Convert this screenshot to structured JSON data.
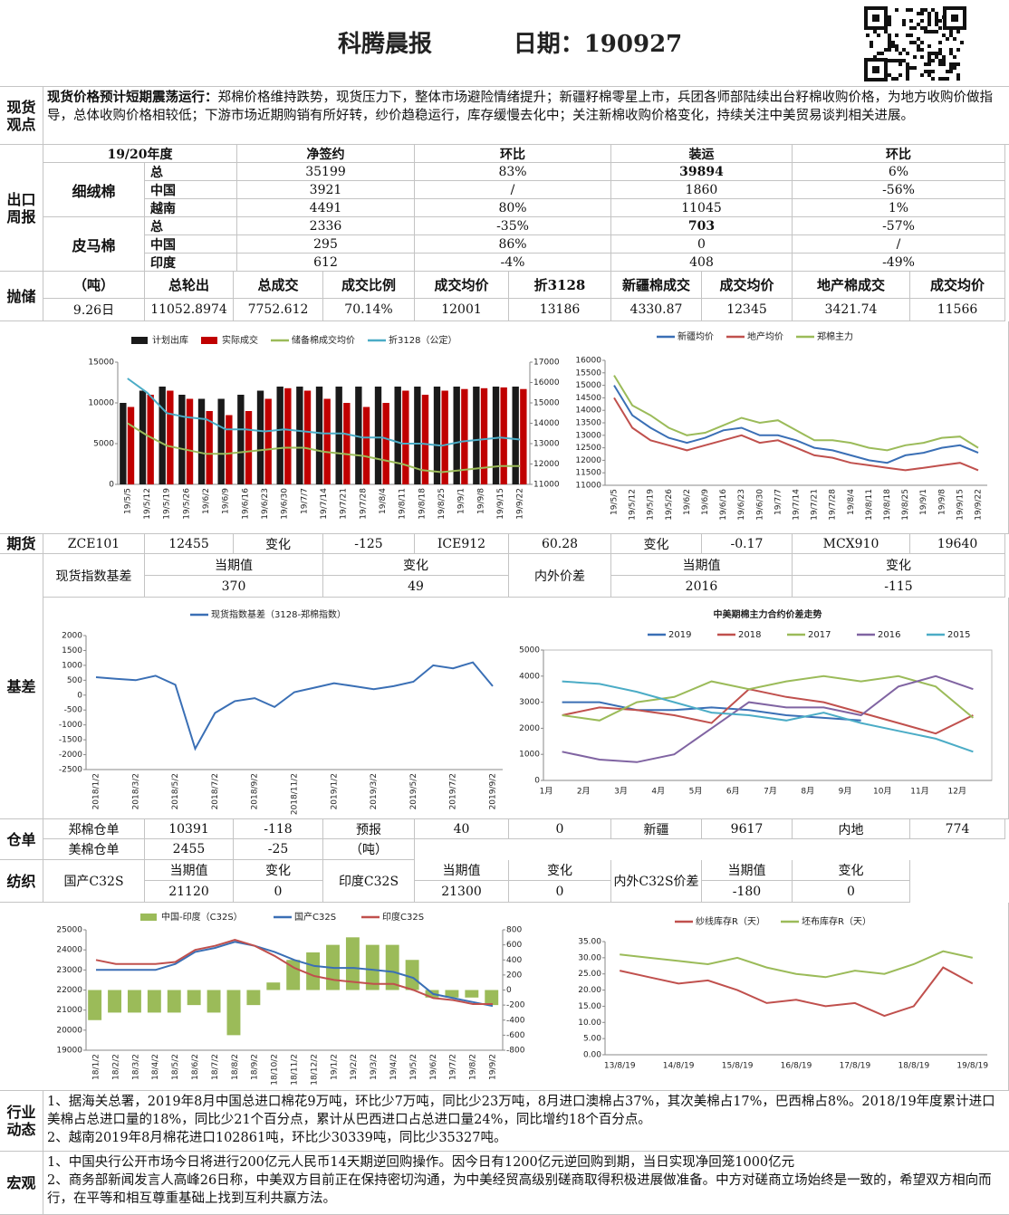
{
  "header": {
    "title": "科腾晨报",
    "date": "日期：190927"
  },
  "spot": {
    "label": "现货观点",
    "bold": "现货价格预计短期震荡运行：",
    "text": "郑棉价格维持跌势，现货压力下，整体市场避险情绪提升；新疆籽棉零星上市，兵团各师部陆续出台籽棉收购价格，为地方收购价做指导，总体收购价格相较低；下游市场近期购销有所好转，纱价趋稳运行，库存缓慢去化中；关注新棉收购价格变化，持续关注中美贸易谈判相关进展。"
  },
  "export": {
    "label": "出口周报",
    "head": [
      "19/20年度",
      "净签约",
      "环比",
      "装运",
      "环比"
    ],
    "groups": [
      {
        "name": "细绒棉",
        "rows": [
          [
            "总",
            "35199",
            "83%",
            "39894",
            "6%"
          ],
          [
            "中国",
            "3921",
            "/",
            "1860",
            "-56%"
          ],
          [
            "越南",
            "4491",
            "80%",
            "11045",
            "1%"
          ]
        ]
      },
      {
        "name": "皮马棉",
        "rows": [
          [
            "总",
            "2336",
            "-35%",
            "703",
            "-57%"
          ],
          [
            "中国",
            "295",
            "86%",
            "0",
            "/"
          ],
          [
            "印度",
            "612",
            "-4%",
            "408",
            "-49%"
          ]
        ]
      }
    ]
  },
  "reserve": {
    "label": "抛储",
    "head": [
      "（吨）",
      "总轮出",
      "总成交",
      "成交比例",
      "成交均价",
      "折3128",
      "新疆棉成交",
      "成交均价",
      "地产棉成交",
      "成交均价"
    ],
    "row": [
      "9.26日",
      "11052.8974",
      "7752.612",
      "70.14%",
      "12001",
      "13186",
      "4330.87",
      "12345",
      "3421.74",
      "11566"
    ]
  },
  "futures": {
    "label": "期货",
    "row": [
      "ZCE101",
      "12455",
      "变化",
      "-125",
      "ICE912",
      "60.28",
      "变化",
      "-0.17",
      "MCX910",
      "19640"
    ]
  },
  "basis": {
    "label": "基差",
    "name": "现货指数基差",
    "head": [
      "当期值",
      "变化"
    ],
    "vals": [
      "370",
      "49"
    ],
    "name2": "内外价差",
    "head2": [
      "当期值",
      "变化"
    ],
    "vals2": [
      "2016",
      "-115"
    ]
  },
  "warehouse": {
    "label": "仓单",
    "rows": [
      [
        "郑棉仓单",
        "10391",
        "-118",
        "预报",
        "40",
        "0",
        "新疆",
        "9617",
        "内地",
        "774"
      ],
      [
        "美棉仓单",
        "2455",
        "-25",
        "（吨）"
      ]
    ]
  },
  "textile": {
    "label": "纺织",
    "items": [
      {
        "name": "国产C32S",
        "head": [
          "当期值",
          "变化"
        ],
        "vals": [
          "21120",
          "0"
        ]
      },
      {
        "name": "印度C32S",
        "head": [
          "当期值",
          "变化"
        ],
        "vals": [
          "21300",
          "0"
        ]
      },
      {
        "name": "内外C32S价差",
        "head": [
          "当期值",
          "变化"
        ],
        "vals": [
          "-180",
          "0"
        ]
      }
    ]
  },
  "industry": {
    "label": "行业动态",
    "paras": [
      "1、据海关总署，2019年8月中国总进口棉花9万吨，环比少7万吨，同比少23万吨，8月进口澳棉占37%，其次美棉占17%，巴西棉占8%。2018/19年度累计进口美棉占总进口量的18%，同比少21个百分点，累计从巴西进口占总进口量24%，同比增约18个百分点。",
      "2、越南2019年8月棉花进口102861吨，环比少30339吨，同比少35327吨。"
    ]
  },
  "macro": {
    "label": "宏观",
    "paras": [
      "1、中国央行公开市场今日将进行200亿元人民币14天期逆回购操作。因今日有1200亿元逆回购到期，当日实现净回笼1000亿元",
      "2、商务部新闻发言人高峰26日称，中美双方目前正在保持密切沟通，为中美经贸高级别磋商取得积极进展做准备。中方对磋商立场始终是一致的，希望双方相向而行，在平等和相互尊重基础上找到互利共赢方法。"
    ]
  },
  "chart_data": [
    {
      "type": "combo",
      "categories": [
        "19/5/5",
        "19/5/12",
        "19/5/19",
        "19/5/26",
        "19/6/2",
        "19/6/9",
        "19/6/16",
        "19/6/23",
        "19/6/30",
        "19/7/7",
        "19/7/14",
        "19/7/21",
        "19/7/28",
        "19/8/4",
        "19/8/11",
        "19/8/18",
        "19/8/25",
        "19/9/1",
        "19/9/8",
        "19/9/15",
        "19/9/22"
      ],
      "ylim": [
        0,
        15000
      ],
      "yticks": [
        0,
        5000,
        10000,
        15000
      ],
      "y2lim": [
        11000,
        17000
      ],
      "y2ticks": [
        11000,
        12000,
        13000,
        14000,
        15000,
        16000,
        17000
      ],
      "series": [
        {
          "name": "计划出库",
          "type": "bar",
          "color": "#1a1a1a",
          "values": [
            10000,
            11500,
            12000,
            11000,
            10500,
            10500,
            11000,
            11500,
            12000,
            12000,
            12000,
            12000,
            12000,
            12000,
            12000,
            12000,
            12000,
            12000,
            12000,
            12000,
            12000
          ]
        },
        {
          "name": "实际成交",
          "type": "bar",
          "color": "#c00000",
          "values": [
            9500,
            11000,
            11500,
            10500,
            9000,
            8500,
            9000,
            10500,
            11800,
            11500,
            10500,
            10000,
            9500,
            10000,
            11500,
            11000,
            11500,
            11700,
            11800,
            11900,
            11700
          ]
        },
        {
          "name": "储备棉成交均价",
          "type": "line",
          "axis": "y2",
          "color": "#9bbb59",
          "values": [
            14000,
            13400,
            12900,
            12700,
            12500,
            12500,
            12600,
            12700,
            12800,
            12800,
            12600,
            12500,
            12400,
            12200,
            12000,
            11700,
            11600,
            11700,
            11800,
            11900,
            11900
          ]
        },
        {
          "name": "折3128（公定）",
          "type": "line",
          "axis": "y2",
          "color": "#4bacc6",
          "values": [
            16200,
            15500,
            14500,
            14300,
            14200,
            13700,
            13700,
            13600,
            13700,
            13600,
            13500,
            13500,
            13300,
            13300,
            13000,
            13000,
            12900,
            13100,
            13200,
            13300,
            13200
          ]
        }
      ]
    },
    {
      "type": "line",
      "categories": [
        "19/5/5",
        "19/5/12",
        "19/5/19",
        "19/5/26",
        "19/6/2",
        "19/6/9",
        "19/6/16",
        "19/6/23",
        "19/6/30",
        "19/7/7",
        "19/7/14",
        "19/7/21",
        "19/7/28",
        "19/8/4",
        "19/8/11",
        "19/8/18",
        "19/8/25",
        "19/9/1",
        "19/9/8",
        "19/9/15",
        "19/9/22"
      ],
      "ylim": [
        11000,
        16000
      ],
      "yticks": [
        11000,
        11500,
        12000,
        12500,
        13000,
        13500,
        14000,
        14500,
        15000,
        15500,
        16000
      ],
      "series": [
        {
          "name": "新疆均价",
          "color": "#3a6fb5",
          "values": [
            15000,
            13800,
            13300,
            12900,
            12700,
            12900,
            13200,
            13300,
            13000,
            13000,
            12800,
            12500,
            12400,
            12200,
            12000,
            11900,
            12200,
            12300,
            12500,
            12600,
            12300
          ]
        },
        {
          "name": "地产均价",
          "color": "#c0504d",
          "values": [
            14500,
            13300,
            12800,
            12600,
            12400,
            12600,
            12800,
            13000,
            12700,
            12800,
            12500,
            12200,
            12100,
            11900,
            11800,
            11700,
            11600,
            11700,
            11800,
            11900,
            11600
          ]
        },
        {
          "name": "郑棉主力",
          "color": "#9bbb59",
          "values": [
            15400,
            14200,
            13800,
            13300,
            13000,
            13100,
            13400,
            13700,
            13500,
            13600,
            13200,
            12800,
            12800,
            12700,
            12500,
            12400,
            12600,
            12700,
            12900,
            12950,
            12500
          ]
        }
      ]
    },
    {
      "type": "line",
      "categories": [
        "2018/1/2",
        null,
        "2018/3/2",
        null,
        "2018/5/2",
        null,
        "2018/7/2",
        null,
        "2018/9/2",
        null,
        "2018/11/2",
        null,
        "2019/1/2",
        null,
        "2019/3/2",
        null,
        "2019/5/2",
        null,
        "2019/7/2",
        null,
        "2019/9/2"
      ],
      "ylim": [
        -2500,
        2000
      ],
      "yticks": [
        -2500,
        -2000,
        -1500,
        -1000,
        -500,
        0,
        500,
        1000,
        1500,
        2000
      ],
      "series": [
        {
          "name": "现货指数基差（3128-郑棉指数）",
          "color": "#3a6fb5",
          "values": [
            600,
            550,
            500,
            650,
            350,
            -1800,
            -600,
            -200,
            -100,
            -400,
            100,
            250,
            400,
            300,
            200,
            300,
            450,
            1000,
            900,
            1100,
            300
          ]
        }
      ]
    },
    {
      "type": "line",
      "title": "中美期棉主力合约价差走势",
      "categories": [
        "1月",
        "2月",
        "3月",
        "4月",
        "5月",
        "6月",
        "7月",
        "8月",
        "9月",
        "10月",
        "11月",
        "12月"
      ],
      "ylim": [
        0,
        5000
      ],
      "yticks": [
        0,
        1000,
        2000,
        3000,
        4000,
        5000
      ],
      "series": [
        {
          "name": "2019",
          "color": "#3a6fb5",
          "values": [
            3000,
            3000,
            2700,
            2700,
            2800,
            2700,
            2500,
            2400,
            2300,
            null,
            null,
            null
          ]
        },
        {
          "name": "2018",
          "color": "#c0504d",
          "values": [
            2500,
            2800,
            2700,
            2500,
            2200,
            3500,
            3200,
            3000,
            2600,
            2200,
            1800,
            2500
          ]
        },
        {
          "name": "2017",
          "color": "#9bbb59",
          "values": [
            2500,
            2300,
            3000,
            3200,
            3800,
            3500,
            3800,
            4000,
            3800,
            4000,
            3600,
            2400
          ]
        },
        {
          "name": "2016",
          "color": "#8064a2",
          "values": [
            1100,
            800,
            700,
            1000,
            2000,
            3000,
            2800,
            2800,
            2500,
            3600,
            4000,
            3500
          ]
        },
        {
          "name": "2015",
          "color": "#4bacc6",
          "values": [
            3800,
            3700,
            3400,
            3000,
            2600,
            2500,
            2300,
            2600,
            2200,
            1900,
            1600,
            1100
          ]
        }
      ]
    },
    {
      "type": "combo",
      "categories": [
        "18/1/2",
        "18/2/2",
        "18/3/2",
        "18/4/2",
        "18/5/2",
        "18/6/2",
        "18/7/2",
        "18/8/2",
        "18/9/2",
        "18/10/2",
        "18/11/2",
        "18/12/2",
        "19/1/2",
        "19/2/2",
        "19/3/2",
        "19/4/2",
        "19/5/2",
        "19/6/2",
        "19/7/2",
        "19/8/2",
        "19/9/2"
      ],
      "ylim": [
        19000,
        25000
      ],
      "yticks": [
        19000,
        20000,
        21000,
        22000,
        23000,
        24000,
        25000
      ],
      "y2lim": [
        -800,
        800
      ],
      "y2ticks": [
        -800,
        -600,
        -400,
        -200,
        0,
        200,
        400,
        600,
        800
      ],
      "series": [
        {
          "name": "中国-印度（C32S）",
          "type": "bar",
          "axis": "y2",
          "color": "#9bbb59",
          "values": [
            -400,
            -300,
            -300,
            -300,
            -300,
            -200,
            -300,
            -600,
            -200,
            100,
            400,
            500,
            600,
            700,
            600,
            600,
            400,
            -100,
            -100,
            -100,
            -200
          ]
        },
        {
          "name": "国产C32S",
          "type": "line",
          "color": "#3a6fb5",
          "values": [
            23000,
            23000,
            23000,
            23000,
            23300,
            23900,
            24100,
            24400,
            24200,
            23900,
            23500,
            23200,
            23100,
            23100,
            23000,
            22900,
            22600,
            21800,
            21600,
            21400,
            21200
          ]
        },
        {
          "name": "印度C32S",
          "type": "line",
          "color": "#c0504d",
          "values": [
            23500,
            23300,
            23300,
            23300,
            23400,
            24000,
            24200,
            24500,
            24200,
            23700,
            23100,
            22700,
            22500,
            22400,
            22300,
            22300,
            22000,
            21600,
            21500,
            21300,
            21300
          ]
        }
      ]
    },
    {
      "type": "line",
      "categories": [
        "13/8/19",
        null,
        "14/8/19",
        null,
        "15/8/19",
        null,
        "16/8/19",
        null,
        "17/8/19",
        null,
        "18/8/19",
        null,
        "19/8/19"
      ],
      "ylim": [
        0,
        35
      ],
      "yticks": [
        {
          "value": 0,
          "label": "0.00"
        },
        {
          "value": 5,
          "label": "5.00"
        },
        {
          "value": 10,
          "label": "10.00"
        },
        {
          "value": 15,
          "label": "15.00"
        },
        {
          "value": 20,
          "label": "20.00"
        },
        {
          "value": 25,
          "label": "25.00"
        },
        {
          "value": 30,
          "label": "30.00"
        },
        {
          "value": 35,
          "label": "35.00"
        }
      ],
      "series": [
        {
          "name": "纱线库存R（天）",
          "color": "#c0504d",
          "values": [
            26,
            24,
            22,
            23,
            20,
            16,
            17,
            15,
            16,
            12,
            15,
            27,
            22
          ]
        },
        {
          "name": "坯布库存R（天）",
          "color": "#9bbb59",
          "values": [
            31,
            30,
            29,
            28,
            30,
            27,
            25,
            24,
            26,
            25,
            28,
            32,
            30
          ]
        }
      ]
    }
  ]
}
